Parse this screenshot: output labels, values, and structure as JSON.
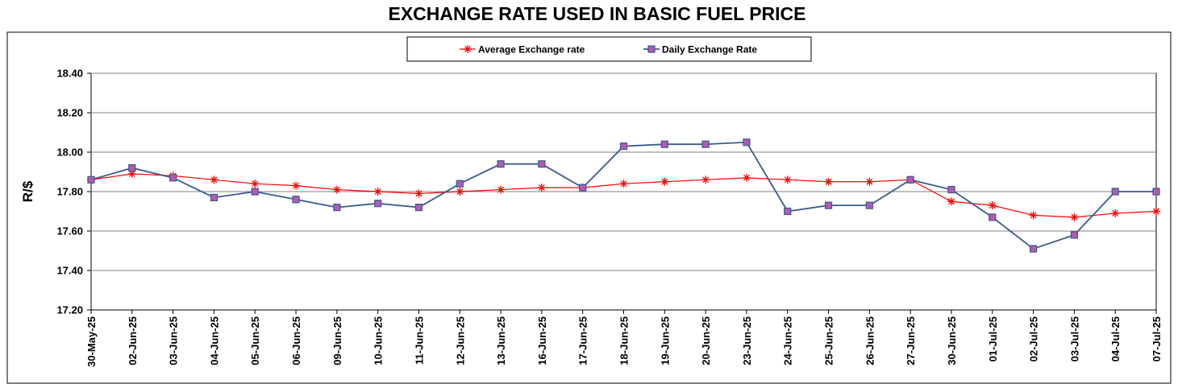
{
  "chart_data": {
    "type": "line",
    "title": "EXCHANGE RATE USED IN BASIC FUEL PRICE",
    "ylabel": "R/$",
    "xlabel": "",
    "ylim": [
      17.2,
      18.4
    ],
    "ytick_step": 0.2,
    "grid": true,
    "legend_position": "top-center",
    "categories": [
      "30-May-25",
      "02-Jun-25",
      "03-Jun-25",
      "04-Jun-25",
      "05-Jun-25",
      "06-Jun-25",
      "09-Jun-25",
      "10-Jun-25",
      "11-Jun-25",
      "12-Jun-25",
      "13-Jun-25",
      "16-Jun-25",
      "17-Jun-25",
      "18-Jun-25",
      "19-Jun-25",
      "20-Jun-25",
      "23-Jun-25",
      "24-Jun-25",
      "25-Jun-25",
      "26-Jun-25",
      "27-Jun-25",
      "30-Jun-25",
      "01-Jul-25",
      "02-Jul-25",
      "03-Jul-25",
      "04-Jul-25",
      "07-Jul-25"
    ],
    "series": [
      {
        "name": "Average Exchange rate",
        "color": "#ff0000",
        "marker": "asterisk",
        "values": [
          17.86,
          17.89,
          17.88,
          17.86,
          17.84,
          17.83,
          17.81,
          17.8,
          17.79,
          17.8,
          17.81,
          17.82,
          17.82,
          17.84,
          17.85,
          17.86,
          17.87,
          17.86,
          17.85,
          17.85,
          17.86,
          17.75,
          17.73,
          17.68,
          17.67,
          17.69,
          17.7
        ]
      },
      {
        "name": "Daily Exchange Rate",
        "color": "#3a5a8c",
        "marker_color": "#b45ab4",
        "marker": "square",
        "values": [
          17.86,
          17.92,
          17.87,
          17.77,
          17.8,
          17.76,
          17.72,
          17.74,
          17.72,
          17.84,
          17.94,
          17.94,
          17.82,
          18.03,
          18.04,
          18.04,
          18.05,
          17.7,
          17.73,
          17.73,
          17.86,
          17.81,
          17.67,
          17.51,
          17.58,
          17.8,
          17.8
        ]
      }
    ]
  }
}
